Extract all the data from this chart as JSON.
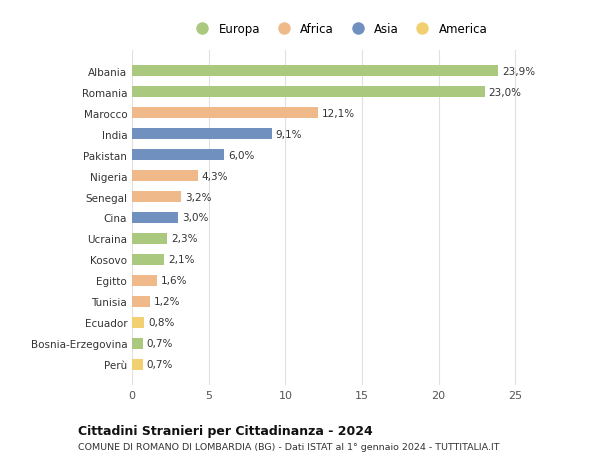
{
  "countries": [
    "Albania",
    "Romania",
    "Marocco",
    "India",
    "Pakistan",
    "Nigeria",
    "Senegal",
    "Cina",
    "Ucraina",
    "Kosovo",
    "Egitto",
    "Tunisia",
    "Ecuador",
    "Bosnia-Erzegovina",
    "Perù"
  ],
  "values": [
    23.9,
    23.0,
    12.1,
    9.1,
    6.0,
    4.3,
    3.2,
    3.0,
    2.3,
    2.1,
    1.6,
    1.2,
    0.8,
    0.7,
    0.7
  ],
  "labels": [
    "23,9%",
    "23,0%",
    "12,1%",
    "9,1%",
    "6,0%",
    "4,3%",
    "3,2%",
    "3,0%",
    "2,3%",
    "2,1%",
    "1,6%",
    "1,2%",
    "0,8%",
    "0,7%",
    "0,7%"
  ],
  "regions": [
    "Europa",
    "Europa",
    "Africa",
    "Asia",
    "Asia",
    "Africa",
    "Africa",
    "Asia",
    "Europa",
    "Europa",
    "Africa",
    "Africa",
    "America",
    "Europa",
    "America"
  ],
  "region_colors": {
    "Europa": "#aac97e",
    "Africa": "#f0b98a",
    "Asia": "#7090c0",
    "America": "#f0d070"
  },
  "legend_order": [
    "Europa",
    "Africa",
    "Asia",
    "America"
  ],
  "title": "Cittadini Stranieri per Cittadinanza - 2024",
  "subtitle": "COMUNE DI ROMANO DI LOMBARDIA (BG) - Dati ISTAT al 1° gennaio 2024 - TUTTITALIA.IT",
  "xlim": [
    0,
    27
  ],
  "xticks": [
    0,
    5,
    10,
    15,
    20,
    25
  ],
  "background_color": "#ffffff",
  "grid_color": "#e0e0e0"
}
